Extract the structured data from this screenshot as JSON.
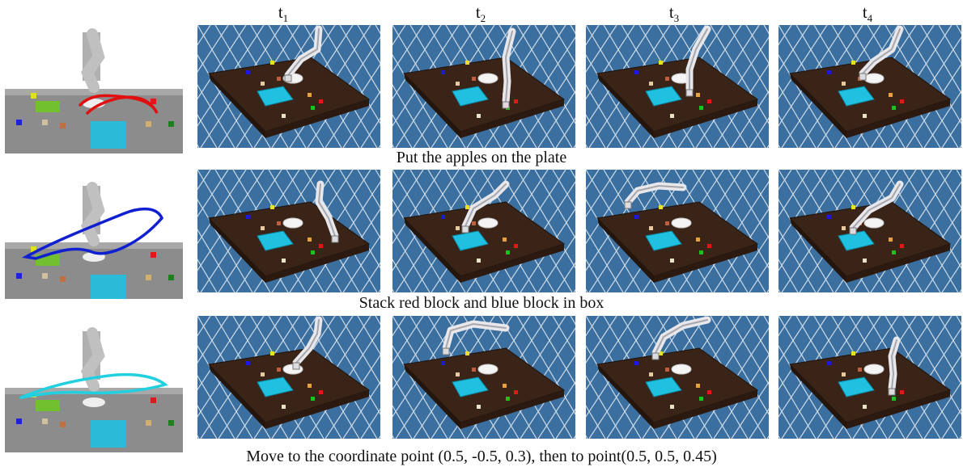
{
  "headers": [
    {
      "base": "t",
      "sub": "1"
    },
    {
      "base": "t",
      "sub": "2"
    },
    {
      "base": "t",
      "sub": "3"
    },
    {
      "base": "t",
      "sub": "4"
    }
  ],
  "rows": [
    {
      "caption": "Put the apples on the plate",
      "trajectory_color": "#e01010"
    },
    {
      "caption": "Stack red block and blue block in box",
      "trajectory_color": "#1020d0"
    },
    {
      "caption": "Move to the coordinate point (0.5, -0.5, 0.3), then to point(0.5, 0.5, 0.45)",
      "trajectory_color": "#20d0e0"
    }
  ],
  "colors": {
    "floor": "#3a6f9f",
    "grid": "#ffffff",
    "table": "#3a2418",
    "box": "#20c0e0",
    "robot": "#e8e8ec",
    "pointcloud": "#8c8c8c"
  }
}
